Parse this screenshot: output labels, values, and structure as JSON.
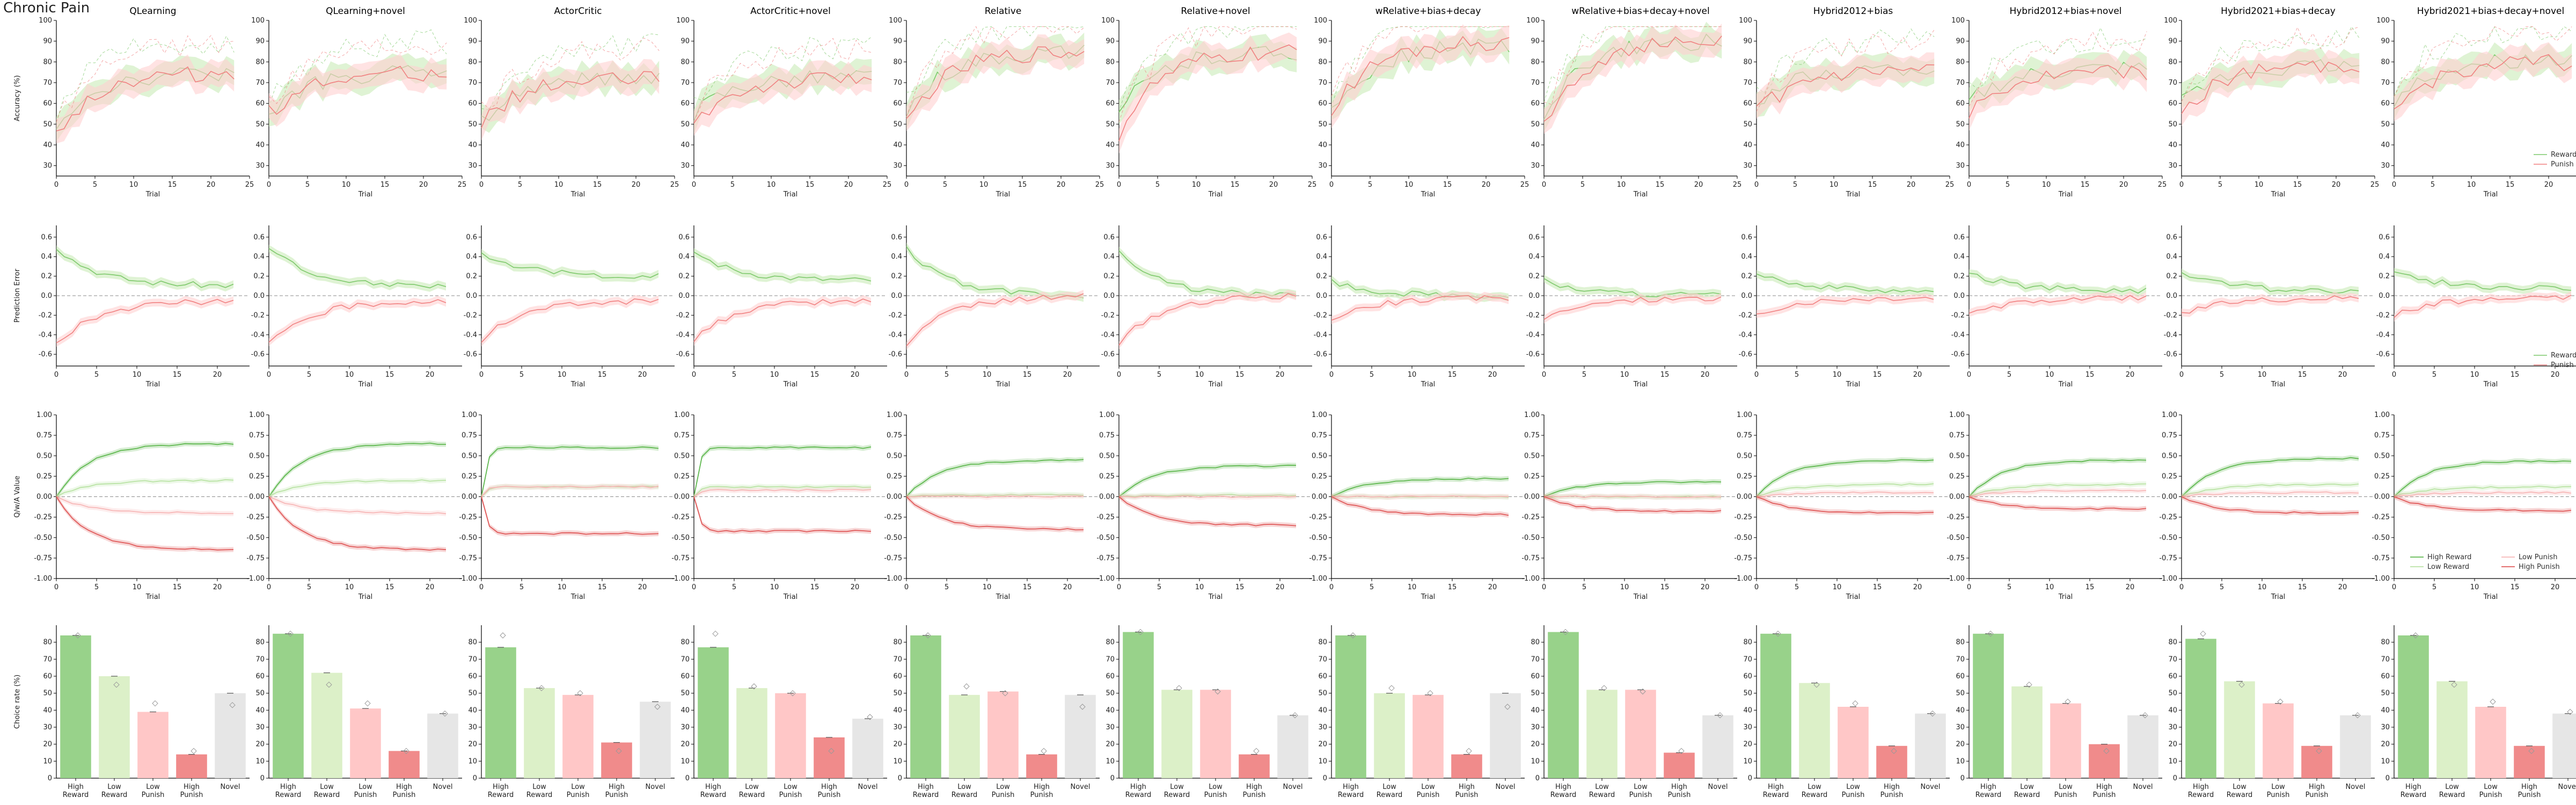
{
  "figure": {
    "title": "Chronic Pain",
    "models": [
      "QLearning",
      "QLearning+novel",
      "ActorCritic",
      "ActorCritic+novel",
      "Relative",
      "Relative+novel",
      "wRelative+bias+decay",
      "wRelative+bias+decay+novel",
      "Hybrid2012+bias",
      "Hybrid2012+bias+novel",
      "Hybrid2021+bias+decay",
      "Hybrid2021+bias+decay+novel"
    ],
    "rows": [
      {
        "ylabel": "Accuracy (%)",
        "xlabel": "Trial",
        "yticks": [
          30,
          40,
          50,
          60,
          70,
          80,
          90,
          100
        ],
        "xticks": [
          0,
          5,
          10,
          15,
          20,
          25
        ],
        "legend": [
          "Reward",
          "Punish"
        ]
      },
      {
        "ylabel": "Prediction Error",
        "xlabel": "Trial",
        "yticks": [
          -0.6,
          -0.4,
          -0.2,
          0.0,
          0.2,
          0.4,
          0.6
        ],
        "xticks": [
          0,
          5,
          10,
          15,
          20
        ],
        "legend": [
          "Reward",
          "Punish"
        ]
      },
      {
        "ylabel": "Q/w/A Value",
        "xlabel": "Trial",
        "yticks": [
          -1.0,
          -0.75,
          -0.5,
          -0.25,
          0.0,
          0.25,
          0.5,
          0.75,
          1.0
        ],
        "xticks": [
          0,
          5,
          10,
          15,
          20
        ],
        "legend": [
          "High Reward",
          "Low Reward",
          "Low Punish",
          "High Punish"
        ]
      },
      {
        "ylabel": "Choice rate (%)",
        "xlabel": "",
        "yticks": [
          0,
          10,
          20,
          30,
          40,
          50,
          60,
          70,
          80
        ],
        "categories": [
          "High Reward",
          "Low Reward",
          "Low Punish",
          "High Punish",
          "Novel"
        ]
      }
    ],
    "colors": {
      "reward": "#7cc86a",
      "reward_fill": "#c9ebb7",
      "punish": "#f08080",
      "punish_fill": "#ffd0d0",
      "hr": "#5fb84f",
      "lr": "#b9e3a4",
      "lp": "#f7b7b7",
      "hp": "#e05a5a",
      "novel": "#d9d9d9",
      "bar_hr": "#98d28a",
      "bar_lr": "#dcf0c8",
      "bar_lp": "#ffc7c7",
      "bar_hp": "#f08b8b",
      "bar_novel": "#e6e6e6"
    }
  },
  "chart_data": [
    {
      "type": "line",
      "panel": "accuracy",
      "x": "trial 0-23",
      "series": [
        {
          "name": "Reward",
          "approx_start_end": [
            [
              50,
              75
            ],
            [
              55,
              75
            ],
            [
              52,
              73
            ],
            [
              55,
              73
            ],
            [
              55,
              85
            ],
            [
              55,
              85
            ],
            [
              55,
              88
            ],
            [
              55,
              90
            ],
            [
              60,
              77
            ],
            [
              60,
              77
            ],
            [
              60,
              78
            ],
            [
              60,
              82
            ]
          ]
        },
        {
          "name": "Punish",
          "approx_start_end": [
            [
              45,
              75
            ],
            [
              55,
              75
            ],
            [
              50,
              72
            ],
            [
              50,
              72
            ],
            [
              50,
              85
            ],
            [
              45,
              85
            ],
            [
              55,
              90
            ],
            [
              50,
              90
            ],
            [
              55,
              75
            ],
            [
              55,
              75
            ],
            [
              55,
              78
            ],
            [
              55,
              80
            ]
          ]
        }
      ]
    },
    {
      "type": "line",
      "panel": "prediction_error",
      "x": "trial 0-22",
      "series": [
        {
          "name": "Reward",
          "approx_start_end": [
            [
              0.5,
              0.1
            ],
            [
              0.5,
              0.1
            ],
            [
              0.45,
              0.2
            ],
            [
              0.45,
              0.15
            ],
            [
              0.5,
              0.0
            ],
            [
              0.45,
              0.0
            ],
            [
              0.15,
              0.0
            ],
            [
              0.15,
              0.0
            ],
            [
              0.25,
              0.05
            ],
            [
              0.25,
              0.05
            ],
            [
              0.25,
              0.05
            ],
            [
              0.25,
              0.08
            ]
          ]
        },
        {
          "name": "Punish",
          "approx_start_end": [
            [
              -0.5,
              -0.05
            ],
            [
              -0.5,
              -0.05
            ],
            [
              -0.45,
              -0.05
            ],
            [
              -0.45,
              -0.05
            ],
            [
              -0.5,
              0.0
            ],
            [
              -0.5,
              0.0
            ],
            [
              -0.25,
              -0.02
            ],
            [
              -0.25,
              -0.02
            ],
            [
              -0.2,
              -0.02
            ],
            [
              -0.2,
              -0.02
            ],
            [
              -0.2,
              -0.02
            ],
            [
              -0.2,
              -0.02
            ]
          ]
        }
      ]
    },
    {
      "type": "line",
      "panel": "value",
      "x": "trial 0-22",
      "series": [
        {
          "name": "High Reward",
          "approx_final": [
            0.65,
            0.65,
            0.6,
            0.6,
            0.45,
            0.38,
            0.22,
            0.18,
            0.45,
            0.45,
            0.47,
            0.44
          ]
        },
        {
          "name": "Low Reward",
          "approx_final": [
            0.2,
            0.2,
            0.12,
            0.12,
            0.02,
            0.02,
            0.0,
            0.0,
            0.15,
            0.15,
            0.15,
            0.12
          ]
        },
        {
          "name": "Low Punish",
          "approx_final": [
            -0.2,
            -0.2,
            0.12,
            0.08,
            0.0,
            0.0,
            0.0,
            0.0,
            0.05,
            0.08,
            0.05,
            0.05
          ]
        },
        {
          "name": "High Punish",
          "approx_final": [
            -0.65,
            -0.65,
            -0.45,
            -0.42,
            -0.4,
            -0.35,
            -0.22,
            -0.18,
            -0.2,
            -0.15,
            -0.2,
            -0.17
          ]
        }
      ]
    },
    {
      "type": "bar",
      "panel": "choice_rate",
      "categories": [
        "High Reward",
        "Low Reward",
        "Low Punish",
        "High Punish",
        "Novel"
      ],
      "series": [
        {
          "model": "QLearning",
          "values": [
            84,
            60,
            39,
            14,
            50
          ],
          "empirical": [
            84,
            55,
            44,
            16,
            43
          ]
        },
        {
          "model": "QLearning+novel",
          "values": [
            85,
            62,
            41,
            16,
            38
          ],
          "empirical": [
            85,
            55,
            44,
            16,
            38
          ]
        },
        {
          "model": "ActorCritic",
          "values": [
            77,
            53,
            49,
            21,
            45
          ],
          "empirical": [
            84,
            53,
            50,
            16,
            42
          ]
        },
        {
          "model": "ActorCritic+novel",
          "values": [
            77,
            53,
            50,
            24,
            35
          ],
          "empirical": [
            85,
            54,
            50,
            16,
            36
          ]
        },
        {
          "model": "Relative",
          "values": [
            84,
            49,
            51,
            14,
            49
          ],
          "empirical": [
            84,
            54,
            50,
            16,
            42
          ]
        },
        {
          "model": "Relative+novel",
          "values": [
            86,
            52,
            52,
            14,
            37
          ],
          "empirical": [
            86,
            53,
            51,
            16,
            37
          ]
        },
        {
          "model": "wRelative+bias+decay",
          "values": [
            84,
            50,
            49,
            14,
            50
          ],
          "empirical": [
            84,
            53,
            50,
            16,
            42
          ]
        },
        {
          "model": "wRelative+bias+decay+novel",
          "values": [
            86,
            52,
            52,
            15,
            37
          ],
          "empirical": [
            86,
            53,
            51,
            16,
            37
          ]
        },
        {
          "model": "Hybrid2012+bias",
          "values": [
            85,
            56,
            42,
            19,
            38
          ],
          "empirical": [
            85,
            55,
            44,
            16,
            38
          ]
        },
        {
          "model": "Hybrid2012+bias+novel",
          "values": [
            85,
            54,
            44,
            20,
            37
          ],
          "empirical": [
            85,
            55,
            45,
            16,
            37
          ]
        },
        {
          "model": "Hybrid2021+bias+decay",
          "values": [
            82,
            57,
            44,
            19,
            37
          ],
          "empirical": [
            85,
            55,
            45,
            16,
            37
          ]
        },
        {
          "model": "Hybrid2021+bias+decay+novel",
          "values": [
            84,
            57,
            42,
            19,
            38
          ],
          "empirical": [
            84,
            55,
            45,
            16,
            39
          ]
        }
      ]
    }
  ]
}
